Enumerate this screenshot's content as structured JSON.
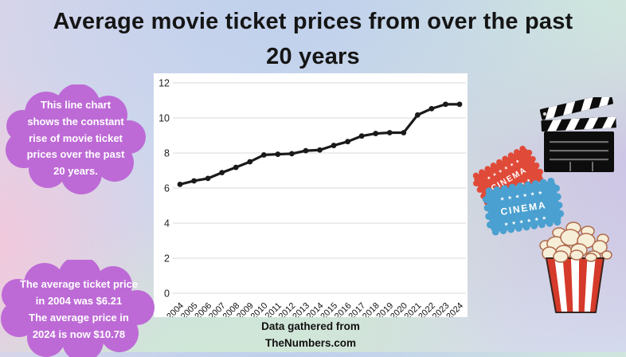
{
  "title": {
    "line1": "Average movie ticket prices from over the past",
    "line2": "20 years"
  },
  "callout_top": {
    "text": "This line chart shows the constant rise of movie ticket prices over the past 20 years."
  },
  "callout_bottom": {
    "line1": "The average ticket price in 2004 was $6.21",
    "line2": "The average price in 2024 is now $10.78"
  },
  "caption": {
    "line1": "Data gathered from",
    "line2": "TheNumbers.com"
  },
  "tickets": {
    "label": "CINEMA",
    "stars": "★ ★ ★ ★ ★ ★"
  },
  "colors": {
    "cloud_purple": "#bd6ad6",
    "chart_line": "#1a1a1a",
    "ticket_red": "#e04a38",
    "ticket_blue": "#4aa0d0",
    "popcorn_stripe_red": "#d53a2a",
    "clapperboard_black": "#0d0d0d",
    "gridline": "#d8d8d8",
    "plot_background": "#ffffff"
  },
  "chart_data": {
    "type": "line",
    "title": "",
    "xlabel": "",
    "ylabel": "",
    "x_categories": [
      "2004",
      "2005",
      "2006",
      "2007",
      "2008",
      "2009",
      "2010",
      "2011",
      "2012",
      "2013",
      "2014",
      "2015",
      "2016",
      "2017",
      "2018",
      "2019",
      "2020",
      "2021",
      "2022",
      "2023",
      "2024"
    ],
    "values": [
      6.21,
      6.41,
      6.55,
      6.88,
      7.18,
      7.5,
      7.89,
      7.93,
      7.96,
      8.13,
      8.17,
      8.43,
      8.65,
      8.97,
      9.11,
      9.16,
      9.16,
      10.17,
      10.53,
      10.78,
      10.78
    ],
    "ylim": [
      0,
      12
    ],
    "yticks": [
      0,
      2,
      4,
      6,
      8,
      10,
      12
    ],
    "grid": true,
    "gridlines": "horizontal",
    "legend_position": "none",
    "marker": "circle",
    "line_color": "#1a1a1a"
  }
}
